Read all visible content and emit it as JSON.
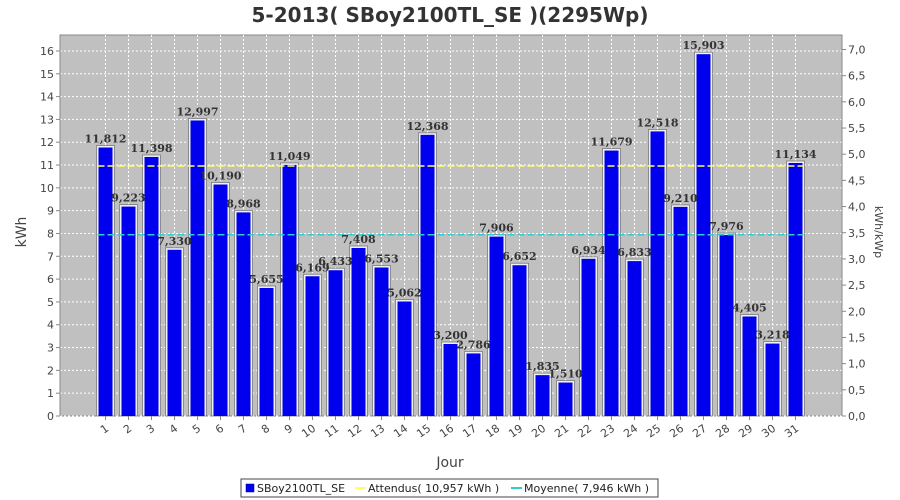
{
  "chart_data": {
    "type": "bar",
    "title": "5-2013( SBoy2100TL_SE )(2295Wp)",
    "xlabel": "Jour",
    "ylabel": "kWh",
    "y2label": "kWh/kWp",
    "ylim": [
      0,
      16.7
    ],
    "y2lim": [
      0,
      7.277
    ],
    "yticks": [
      "0",
      "1",
      "2",
      "3",
      "4",
      "5",
      "6",
      "7",
      "8",
      "9",
      "10",
      "11",
      "12",
      "13",
      "14",
      "15",
      "16"
    ],
    "y2ticks": [
      "0,0",
      "0,5",
      "1,0",
      "1,5",
      "2,0",
      "2,5",
      "3,0",
      "3,5",
      "4,0",
      "4,5",
      "5,0",
      "5,5",
      "6,0",
      "6,5",
      "7,0"
    ],
    "categories": [
      "1",
      "2",
      "3",
      "4",
      "5",
      "6",
      "7",
      "8",
      "9",
      "10",
      "11",
      "12",
      "13",
      "14",
      "15",
      "16",
      "17",
      "18",
      "19",
      "20",
      "21",
      "22",
      "23",
      "24",
      "25",
      "26",
      "27",
      "28",
      "29",
      "30",
      "31"
    ],
    "series": [
      {
        "name": "SBoy2100TL_SE",
        "color": "#0000ee",
        "values": [
          11.812,
          9.223,
          11.398,
          7.33,
          12.997,
          10.19,
          8.968,
          5.655,
          11.049,
          6.169,
          6.433,
          7.408,
          6.553,
          5.062,
          12.368,
          3.2,
          2.786,
          7.906,
          6.652,
          1.835,
          1.51,
          6.934,
          11.679,
          6.833,
          12.518,
          9.21,
          15.903,
          7.976,
          4.405,
          3.218,
          11.134
        ],
        "labels": [
          "11,812",
          "9,223",
          "11,398",
          "7,330",
          "12,997",
          "10,190",
          "8,968",
          "5,655",
          "11,049",
          "6,169",
          "6,433",
          "7,408",
          "6,553",
          "5,062",
          "12,368",
          "3,200",
          "2,786",
          "7,906",
          "6,652",
          "1,835",
          "1,510",
          "6,934",
          "11,679",
          "6,833",
          "12,518",
          "9,210",
          "15,903",
          "7,976",
          "4,405",
          "3,218",
          "11,134"
        ]
      }
    ],
    "reference_lines": [
      {
        "name": "Attendus",
        "value": 10.957,
        "color": "#ffff66",
        "legend": "Attendus( 10,957 kWh )"
      },
      {
        "name": "Moyenne",
        "value": 7.946,
        "color": "#33cccc",
        "legend": "Moyenne( 7,946 kWh )"
      }
    ],
    "grid": true,
    "legend_position": "bottom"
  }
}
